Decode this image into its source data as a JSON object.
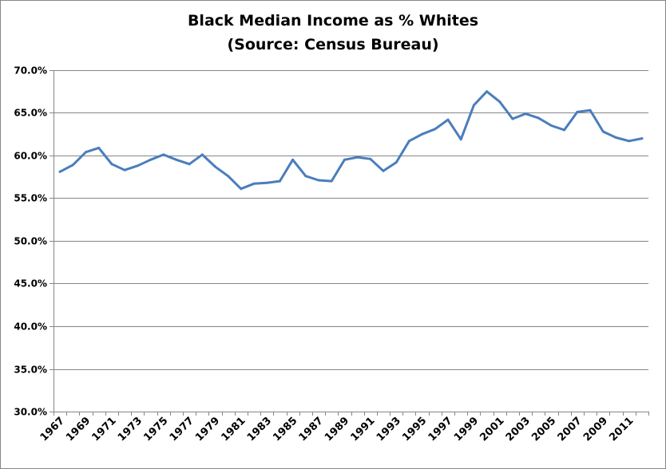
{
  "chart_data": {
    "type": "line",
    "title": "Black Median Income as % Whites",
    "subtitle": "(Source: Census Bureau)",
    "xlabel": "",
    "ylabel": "",
    "ylim": [
      0.3,
      0.7
    ],
    "ytick_values": [
      0.3,
      0.35,
      0.4,
      0.45,
      0.5,
      0.55,
      0.6,
      0.65,
      0.7
    ],
    "ytick_labels": [
      "30.0%",
      "35.0%",
      "40.0%",
      "45.0%",
      "50.0%",
      "55.0%",
      "60.0%",
      "65.0%",
      "70.0%"
    ],
    "xtick_labels": [
      "1967",
      "1969",
      "1971",
      "1973",
      "1975",
      "1977",
      "1979",
      "1981",
      "1983",
      "1985",
      "1987",
      "1989",
      "1991",
      "1993",
      "1995",
      "1997",
      "1999",
      "2001",
      "2003",
      "2005",
      "2007",
      "2009",
      "2011"
    ],
    "grid": true,
    "legend": "none",
    "line_color": "#4a7ebb",
    "x": [
      1967,
      1968,
      1969,
      1970,
      1971,
      1972,
      1973,
      1974,
      1975,
      1976,
      1977,
      1978,
      1979,
      1980,
      1981,
      1982,
      1983,
      1984,
      1985,
      1986,
      1987,
      1988,
      1989,
      1990,
      1991,
      1992,
      1993,
      1994,
      1995,
      1996,
      1997,
      1998,
      1999,
      2000,
      2001,
      2002,
      2003,
      2004,
      2005,
      2006,
      2007,
      2008,
      2009,
      2010,
      2011,
      2012
    ],
    "series": [
      {
        "values": [
          0.581,
          0.589,
          0.604,
          0.609,
          0.59,
          0.583,
          0.588,
          0.595,
          0.601,
          0.595,
          0.59,
          0.601,
          0.587,
          0.576,
          0.561,
          0.567,
          0.568,
          0.57,
          0.595,
          0.576,
          0.571,
          0.57,
          0.595,
          0.598,
          0.596,
          0.582,
          0.592,
          0.617,
          0.625,
          0.631,
          0.642,
          0.619,
          0.659,
          0.675,
          0.663,
          0.643,
          0.649,
          0.644,
          0.635,
          0.63,
          0.651,
          0.653,
          0.628,
          0.621,
          0.617,
          0.62
        ]
      }
    ]
  }
}
